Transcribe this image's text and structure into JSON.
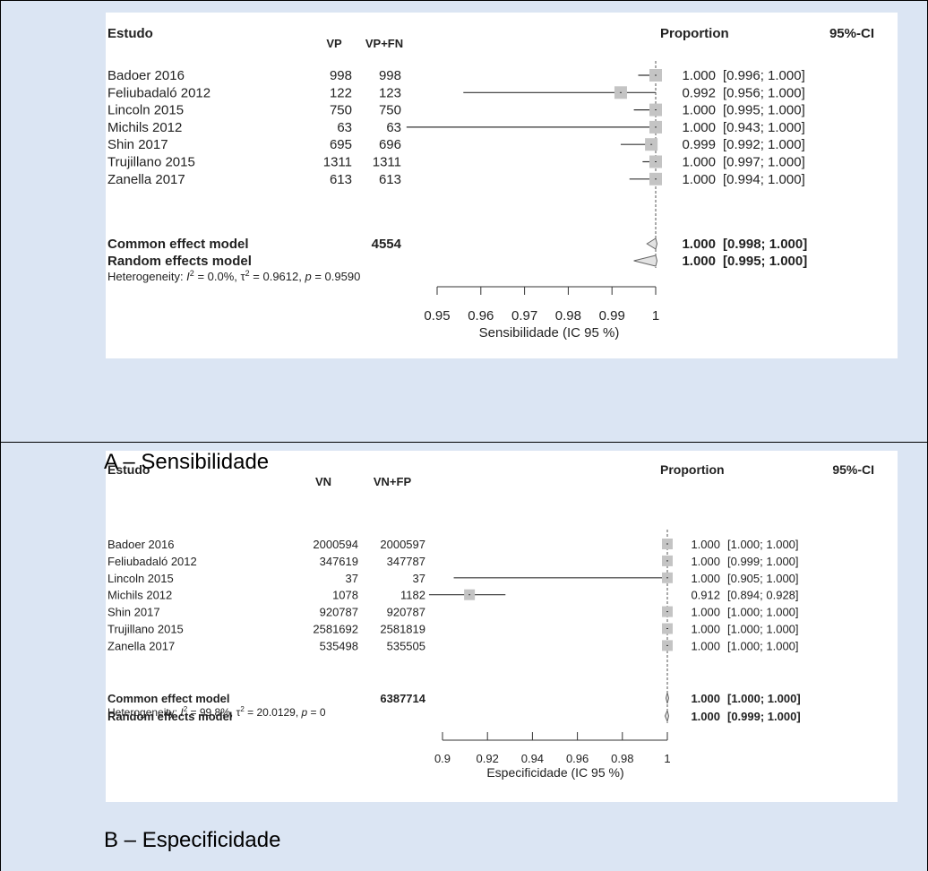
{
  "panels": [
    {
      "caption": "A – Sensibilidade",
      "headers": {
        "study": "Estudo",
        "events": "VP",
        "total": "VP+FN",
        "proportion": "Proportion",
        "ci": "95%-CI"
      },
      "studies": [
        {
          "name": "Badoer 2016",
          "events": "998",
          "total": "998",
          "prop_label": "1.000",
          "ci_label": "[0.996; 1.000]"
        },
        {
          "name": "Feliubadaló 2012",
          "events": "122",
          "total": "123",
          "prop_label": "0.992",
          "ci_label": "[0.956; 1.000]"
        },
        {
          "name": "Lincoln 2015",
          "events": "750",
          "total": "750",
          "prop_label": "1.000",
          "ci_label": "[0.995; 1.000]"
        },
        {
          "name": "Michils 2012",
          "events": "63",
          "total": "63",
          "prop_label": "1.000",
          "ci_label": "[0.943; 1.000]"
        },
        {
          "name": "Shin 2017",
          "events": "695",
          "total": "696",
          "prop_label": "0.999",
          "ci_label": "[0.992; 1.000]"
        },
        {
          "name": "Trujillano 2015",
          "events": "1311",
          "total": "1311",
          "prop_label": "1.000",
          "ci_label": "[0.997; 1.000]"
        },
        {
          "name": "Zanella 2017",
          "events": "613",
          "total": "613",
          "prop_label": "1.000",
          "ci_label": "[0.994; 1.000]"
        }
      ],
      "summary": [
        {
          "name": "Common effect model",
          "total": "4554",
          "prop_label": "1.000",
          "ci_label": "[0.998; 1.000]"
        },
        {
          "name": "Random effects model",
          "total": "",
          "prop_label": "1.000",
          "ci_label": "[0.995; 1.000]"
        }
      ],
      "heterogeneity": {
        "prefix": "Heterogeneity: ",
        "i2": "= 0.0%, ",
        "tau2": "= 0.9612, ",
        "p": "= 0.9590"
      },
      "axis_label": "Sensibilidade (IC 95 %)"
    },
    {
      "caption": "B – Especificidade",
      "headers": {
        "study": "Estudo",
        "events": "VN",
        "total": "VN+FP",
        "proportion": "Proportion",
        "ci": "95%-CI"
      },
      "studies": [
        {
          "name": "Badoer 2016",
          "events": "2000594",
          "total": "2000597",
          "prop_label": "1.000",
          "ci_label": "[1.000; 1.000]"
        },
        {
          "name": "Feliubadaló 2012",
          "events": "347619",
          "total": "347787",
          "prop_label": "1.000",
          "ci_label": "[0.999; 1.000]"
        },
        {
          "name": "Lincoln 2015",
          "events": "37",
          "total": "37",
          "prop_label": "1.000",
          "ci_label": "[0.905; 1.000]"
        },
        {
          "name": "Michils 2012",
          "events": "1078",
          "total": "1182",
          "prop_label": "0.912",
          "ci_label": "[0.894; 0.928]"
        },
        {
          "name": "Shin 2017",
          "events": "920787",
          "total": "920787",
          "prop_label": "1.000",
          "ci_label": "[1.000; 1.000]"
        },
        {
          "name": "Trujillano 2015",
          "events": "2581692",
          "total": "2581819",
          "prop_label": "1.000",
          "ci_label": "[1.000; 1.000]"
        },
        {
          "name": "Zanella 2017",
          "events": "535498",
          "total": "535505",
          "prop_label": "1.000",
          "ci_label": "[1.000; 1.000]"
        }
      ],
      "summary": [
        {
          "name": "Common effect model",
          "total": "6387714",
          "prop_label": "1.000",
          "ci_label": "[1.000; 1.000]"
        },
        {
          "name": "Random effects model",
          "total": "",
          "prop_label": "1.000",
          "ci_label": "[0.999; 1.000]"
        }
      ],
      "heterogeneity": {
        "prefix": "Heterogeneity: ",
        "i2": "= 99.8%, ",
        "tau2": "= 20.0129, ",
        "p": "= 0"
      },
      "axis_label": "Especificidade (IC 95 %)"
    }
  ],
  "chart_data": [
    {
      "type": "forest",
      "xlabel": "Sensibilidade (IC 95 %)",
      "xlim": [
        0.95,
        1.0
      ],
      "xticks": [
        0.95,
        0.96,
        0.97,
        0.98,
        0.99,
        1
      ],
      "xtick_labels": [
        "0.95",
        "0.96",
        "0.97",
        "0.98",
        "0.99",
        "1"
      ],
      "studies": [
        {
          "name": "Badoer 2016",
          "estimate": 1.0,
          "lower": 0.996,
          "upper": 1.0
        },
        {
          "name": "Feliubadaló 2012",
          "estimate": 0.992,
          "lower": 0.956,
          "upper": 1.0
        },
        {
          "name": "Lincoln 2015",
          "estimate": 1.0,
          "lower": 0.995,
          "upper": 1.0
        },
        {
          "name": "Michils 2012",
          "estimate": 1.0,
          "lower": 0.943,
          "upper": 1.0
        },
        {
          "name": "Shin 2017",
          "estimate": 0.999,
          "lower": 0.992,
          "upper": 1.0
        },
        {
          "name": "Trujillano 2015",
          "estimate": 1.0,
          "lower": 0.997,
          "upper": 1.0
        },
        {
          "name": "Zanella 2017",
          "estimate": 1.0,
          "lower": 0.994,
          "upper": 1.0
        }
      ],
      "common": {
        "estimate": 1.0,
        "lower": 0.998,
        "upper": 1.0
      },
      "random": {
        "estimate": 1.0,
        "lower": 0.995,
        "upper": 1.0
      }
    },
    {
      "type": "forest",
      "xlabel": "Especificidade (IC 95 %)",
      "xlim": [
        0.9,
        1.0
      ],
      "xticks": [
        0.9,
        0.92,
        0.94,
        0.96,
        0.98,
        1
      ],
      "xtick_labels": [
        "0.9",
        "0.92",
        "0.94",
        "0.96",
        "0.98",
        "1"
      ],
      "studies": [
        {
          "name": "Badoer 2016",
          "estimate": 1.0,
          "lower": 1.0,
          "upper": 1.0
        },
        {
          "name": "Feliubadaló 2012",
          "estimate": 1.0,
          "lower": 0.999,
          "upper": 1.0
        },
        {
          "name": "Lincoln 2015",
          "estimate": 1.0,
          "lower": 0.905,
          "upper": 1.0
        },
        {
          "name": "Michils 2012",
          "estimate": 0.912,
          "lower": 0.894,
          "upper": 0.928
        },
        {
          "name": "Shin 2017",
          "estimate": 1.0,
          "lower": 1.0,
          "upper": 1.0
        },
        {
          "name": "Trujillano 2015",
          "estimate": 1.0,
          "lower": 1.0,
          "upper": 1.0
        },
        {
          "name": "Zanella 2017",
          "estimate": 1.0,
          "lower": 1.0,
          "upper": 1.0
        }
      ],
      "common": {
        "estimate": 1.0,
        "lower": 1.0,
        "upper": 1.0
      },
      "random": {
        "estimate": 1.0,
        "lower": 0.999,
        "upper": 1.0
      }
    }
  ]
}
